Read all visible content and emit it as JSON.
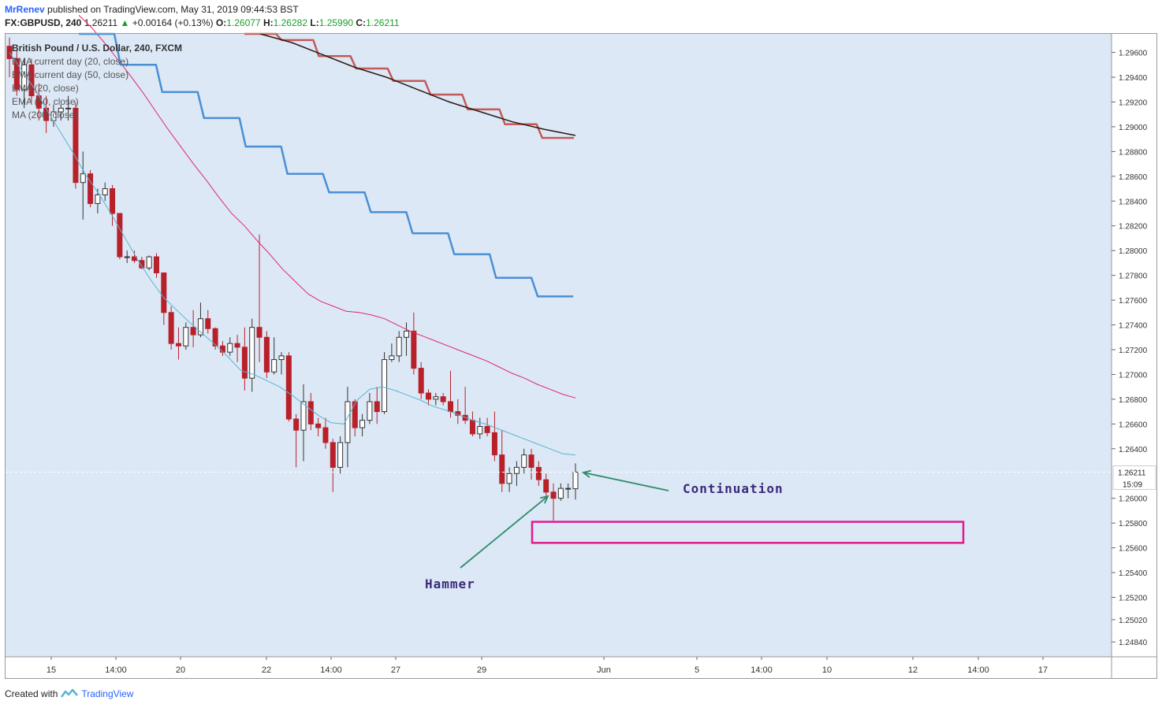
{
  "header": {
    "author": "MrRenev",
    "published_text": "published on TradingView.com, May 31, 2019 09:44:53 BST"
  },
  "quote": {
    "symbol": "FX:GBPUSD, 240",
    "last": "1.26211",
    "arrow": "▲",
    "change": "+0.00164 (+0.13%)",
    "o_label": "O:",
    "o": "1.26077",
    "h_label": "H:",
    "h": "1.26282",
    "l_label": "L:",
    "l": "1.25990",
    "c_label": "C:",
    "c": "1.26211"
  },
  "legend": {
    "title": "British Pound / U.S. Dollar, 240, FXCM",
    "items": [
      "EMA current day (20, close)",
      "EMA current day (50, close)",
      "EMA (20, close)",
      "EMA (50, close)",
      "MA (200, close)"
    ]
  },
  "annotations": {
    "continuation": "Continuation",
    "hammer": "Hammer"
  },
  "price_tag": {
    "price": "1.26211",
    "countdown": "15:09"
  },
  "footer": {
    "created_with": "Created with",
    "brand": "TradingView"
  },
  "colors": {
    "background": "#dce8f5",
    "up_candle": "#ffffff",
    "down_candle": "#b8202a",
    "ema20": "#5ab4d6",
    "ema50": "#e0266e",
    "ema_day20": "#4a8fd4",
    "ema_day50": "#c45a5a",
    "ma200": "#2b1a12",
    "zone": "#e01a8a",
    "arrow": "#2e8b6a"
  },
  "chart_data": {
    "type": "candlestick",
    "title": "British Pound / U.S. Dollar, 240, FXCM",
    "ylim": [
      1.2472,
      1.2975
    ],
    "y_ticks": [
      "1.29600",
      "1.29400",
      "1.29200",
      "1.29000",
      "1.28800",
      "1.28600",
      "1.28400",
      "1.28200",
      "1.28000",
      "1.27800",
      "1.27600",
      "1.27400",
      "1.27200",
      "1.27000",
      "1.26800",
      "1.26600",
      "1.26400",
      "1.26000",
      "1.25800",
      "1.25600",
      "1.25400",
      "1.25200",
      "1.25020",
      "1.24840"
    ],
    "x_ticks": [
      "15",
      "14:00",
      "20",
      "22",
      "14:00",
      "27",
      "29",
      "Jun",
      "5",
      "14:00",
      "10",
      "12",
      "14:00",
      "17"
    ],
    "candles": [
      [
        1.2965,
        1.2972,
        1.294,
        1.2955
      ],
      [
        1.2955,
        1.2962,
        1.2925,
        1.293
      ],
      [
        1.293,
        1.2955,
        1.2915,
        1.295
      ],
      [
        1.295,
        1.2955,
        1.292,
        1.2925
      ],
      [
        1.2925,
        1.2935,
        1.2905,
        1.2915
      ],
      [
        1.2915,
        1.2925,
        1.2895,
        1.2905
      ],
      [
        1.2905,
        1.2918,
        1.29,
        1.2912
      ],
      [
        1.2912,
        1.2918,
        1.2905,
        1.2915
      ],
      [
        1.2915,
        1.2925,
        1.2905,
        1.2915
      ],
      [
        1.2915,
        1.292,
        1.285,
        1.2855
      ],
      [
        1.2855,
        1.288,
        1.2825,
        1.2862
      ],
      [
        1.2862,
        1.2865,
        1.2835,
        1.2838
      ],
      [
        1.2838,
        1.285,
        1.283,
        1.2845
      ],
      [
        1.2845,
        1.2855,
        1.284,
        1.285
      ],
      [
        1.285,
        1.2853,
        1.282,
        1.283
      ],
      [
        1.283,
        1.283,
        1.2793,
        1.2795
      ],
      [
        1.2795,
        1.28,
        1.279,
        1.2795
      ],
      [
        1.2795,
        1.28,
        1.279,
        1.2792
      ],
      [
        1.2792,
        1.2795,
        1.2785,
        1.2786
      ],
      [
        1.2786,
        1.2796,
        1.2784,
        1.2795
      ],
      [
        1.2795,
        1.2798,
        1.2778,
        1.2782
      ],
      [
        1.2782,
        1.2782,
        1.274,
        1.275
      ],
      [
        1.275,
        1.2755,
        1.272,
        1.2725
      ],
      [
        1.2725,
        1.2738,
        1.2712,
        1.2723
      ],
      [
        1.2723,
        1.2742,
        1.272,
        1.2738
      ],
      [
        1.2738,
        1.2752,
        1.2722,
        1.2732
      ],
      [
        1.2732,
        1.2758,
        1.273,
        1.2745
      ],
      [
        1.2745,
        1.2752,
        1.2733,
        1.2737
      ],
      [
        1.2737,
        1.2738,
        1.272,
        1.2723
      ],
      [
        1.2723,
        1.2727,
        1.2715,
        1.2718
      ],
      [
        1.2718,
        1.273,
        1.2715,
        1.2725
      ],
      [
        1.2725,
        1.2732,
        1.271,
        1.2722
      ],
      [
        1.2722,
        1.2738,
        1.2687,
        1.2697
      ],
      [
        1.2697,
        1.2745,
        1.2686,
        1.2738
      ],
      [
        1.2738,
        1.2813,
        1.271,
        1.273
      ],
      [
        1.273,
        1.2735,
        1.2697,
        1.2702
      ],
      [
        1.2702,
        1.273,
        1.27,
        1.2712
      ],
      [
        1.2712,
        1.2718,
        1.27,
        1.2715
      ],
      [
        1.2715,
        1.2718,
        1.2662,
        1.2664
      ],
      [
        1.2664,
        1.2668,
        1.2625,
        1.2655
      ],
      [
        1.2655,
        1.2692,
        1.263,
        1.2678
      ],
      [
        1.2678,
        1.2685,
        1.2655,
        1.266
      ],
      [
        1.266,
        1.2665,
        1.265,
        1.2657
      ],
      [
        1.2657,
        1.2665,
        1.264,
        1.2645
      ],
      [
        1.2645,
        1.2648,
        1.2605,
        1.2625
      ],
      [
        1.2625,
        1.265,
        1.262,
        1.2645
      ],
      [
        1.2645,
        1.269,
        1.2625,
        1.2678
      ],
      [
        1.2678,
        1.268,
        1.265,
        1.2657
      ],
      [
        1.2657,
        1.2668,
        1.265,
        1.2663
      ],
      [
        1.2663,
        1.2685,
        1.266,
        1.2678
      ],
      [
        1.2678,
        1.269,
        1.266,
        1.267
      ],
      [
        1.267,
        1.2718,
        1.2668,
        1.2712
      ],
      [
        1.2712,
        1.2725,
        1.271,
        1.2715
      ],
      [
        1.2715,
        1.2735,
        1.271,
        1.273
      ],
      [
        1.273,
        1.2742,
        1.2715,
        1.2735
      ],
      [
        1.2735,
        1.275,
        1.27,
        1.2705
      ],
      [
        1.2705,
        1.271,
        1.268,
        1.2685
      ],
      [
        1.2685,
        1.2688,
        1.2675,
        1.268
      ],
      [
        1.268,
        1.2685,
        1.2675,
        1.2682
      ],
      [
        1.2682,
        1.2685,
        1.2675,
        1.2678
      ],
      [
        1.2678,
        1.2703,
        1.2665,
        1.267
      ],
      [
        1.267,
        1.268,
        1.266,
        1.2667
      ],
      [
        1.2667,
        1.269,
        1.266,
        1.2663
      ],
      [
        1.2663,
        1.267,
        1.265,
        1.2652
      ],
      [
        1.2652,
        1.2665,
        1.2648,
        1.2658
      ],
      [
        1.2658,
        1.2665,
        1.265,
        1.2653
      ],
      [
        1.2653,
        1.267,
        1.263,
        1.2635
      ],
      [
        1.2635,
        1.2655,
        1.2605,
        1.2612
      ],
      [
        1.2612,
        1.2625,
        1.2605,
        1.262
      ],
      [
        1.262,
        1.263,
        1.261,
        1.2625
      ],
      [
        1.2625,
        1.264,
        1.262,
        1.2635
      ],
      [
        1.2635,
        1.264,
        1.2615,
        1.2625
      ],
      [
        1.2625,
        1.263,
        1.261,
        1.2615
      ],
      [
        1.2615,
        1.262,
        1.26,
        1.2605
      ],
      [
        1.2605,
        1.2612,
        1.2582,
        1.26
      ],
      [
        1.26,
        1.2612,
        1.2598,
        1.2608
      ],
      [
        1.2608,
        1.2612,
        1.26,
        1.2608
      ],
      [
        1.26077,
        1.26282,
        1.2599,
        1.26211
      ]
    ],
    "ema20": [
      1.296,
      1.2945,
      1.293,
      1.2912,
      1.2895,
      1.2878,
      1.286,
      1.2845,
      1.2828,
      1.281,
      1.2792,
      1.2776,
      1.2762,
      1.2752,
      1.2742,
      1.2733,
      1.2724,
      1.2714,
      1.2703,
      1.27,
      1.2695,
      1.269,
      1.2683,
      1.2675,
      1.2667,
      1.2661,
      1.266,
      1.2679,
      1.2688,
      1.269,
      1.2687,
      1.2683,
      1.2679,
      1.2674,
      1.2671,
      1.2667,
      1.2663,
      1.266,
      1.2656,
      1.2652,
      1.2648,
      1.2644,
      1.264,
      1.2636,
      1.2635
    ],
    "ema50": [
      1.299,
      1.298,
      1.2968,
      1.2955,
      1.2942,
      1.2928,
      1.2913,
      1.2898,
      1.2884,
      1.287,
      1.2857,
      1.2843,
      1.283,
      1.282,
      1.2808,
      1.2797,
      1.2785,
      1.2775,
      1.2765,
      1.2759,
      1.2755,
      1.2751,
      1.275,
      1.2748,
      1.2745,
      1.274,
      1.2735,
      1.2731,
      1.2727,
      1.2723,
      1.2719,
      1.2715,
      1.2711,
      1.2706,
      1.2701,
      1.2697,
      1.2692,
      1.2688,
      1.2684,
      1.2681
    ],
    "ema_day20_steps": [
      1.2975,
      1.295,
      1.2928,
      1.2907,
      1.2884,
      1.2862,
      1.2847,
      1.2831,
      1.2814,
      1.2797,
      1.2778,
      1.2763
    ],
    "ema_day50_steps": [
      1.2975,
      1.297,
      1.2957,
      1.2947,
      1.2937,
      1.2926,
      1.2914,
      1.2902,
      1.2891
    ],
    "ma200": [
      1.2975,
      1.2968,
      1.2958,
      1.2948,
      1.294,
      1.293,
      1.292,
      1.2912,
      1.2904,
      1.2898,
      1.2893
    ],
    "zone": {
      "from": 1.2564,
      "to": 1.2581
    }
  }
}
